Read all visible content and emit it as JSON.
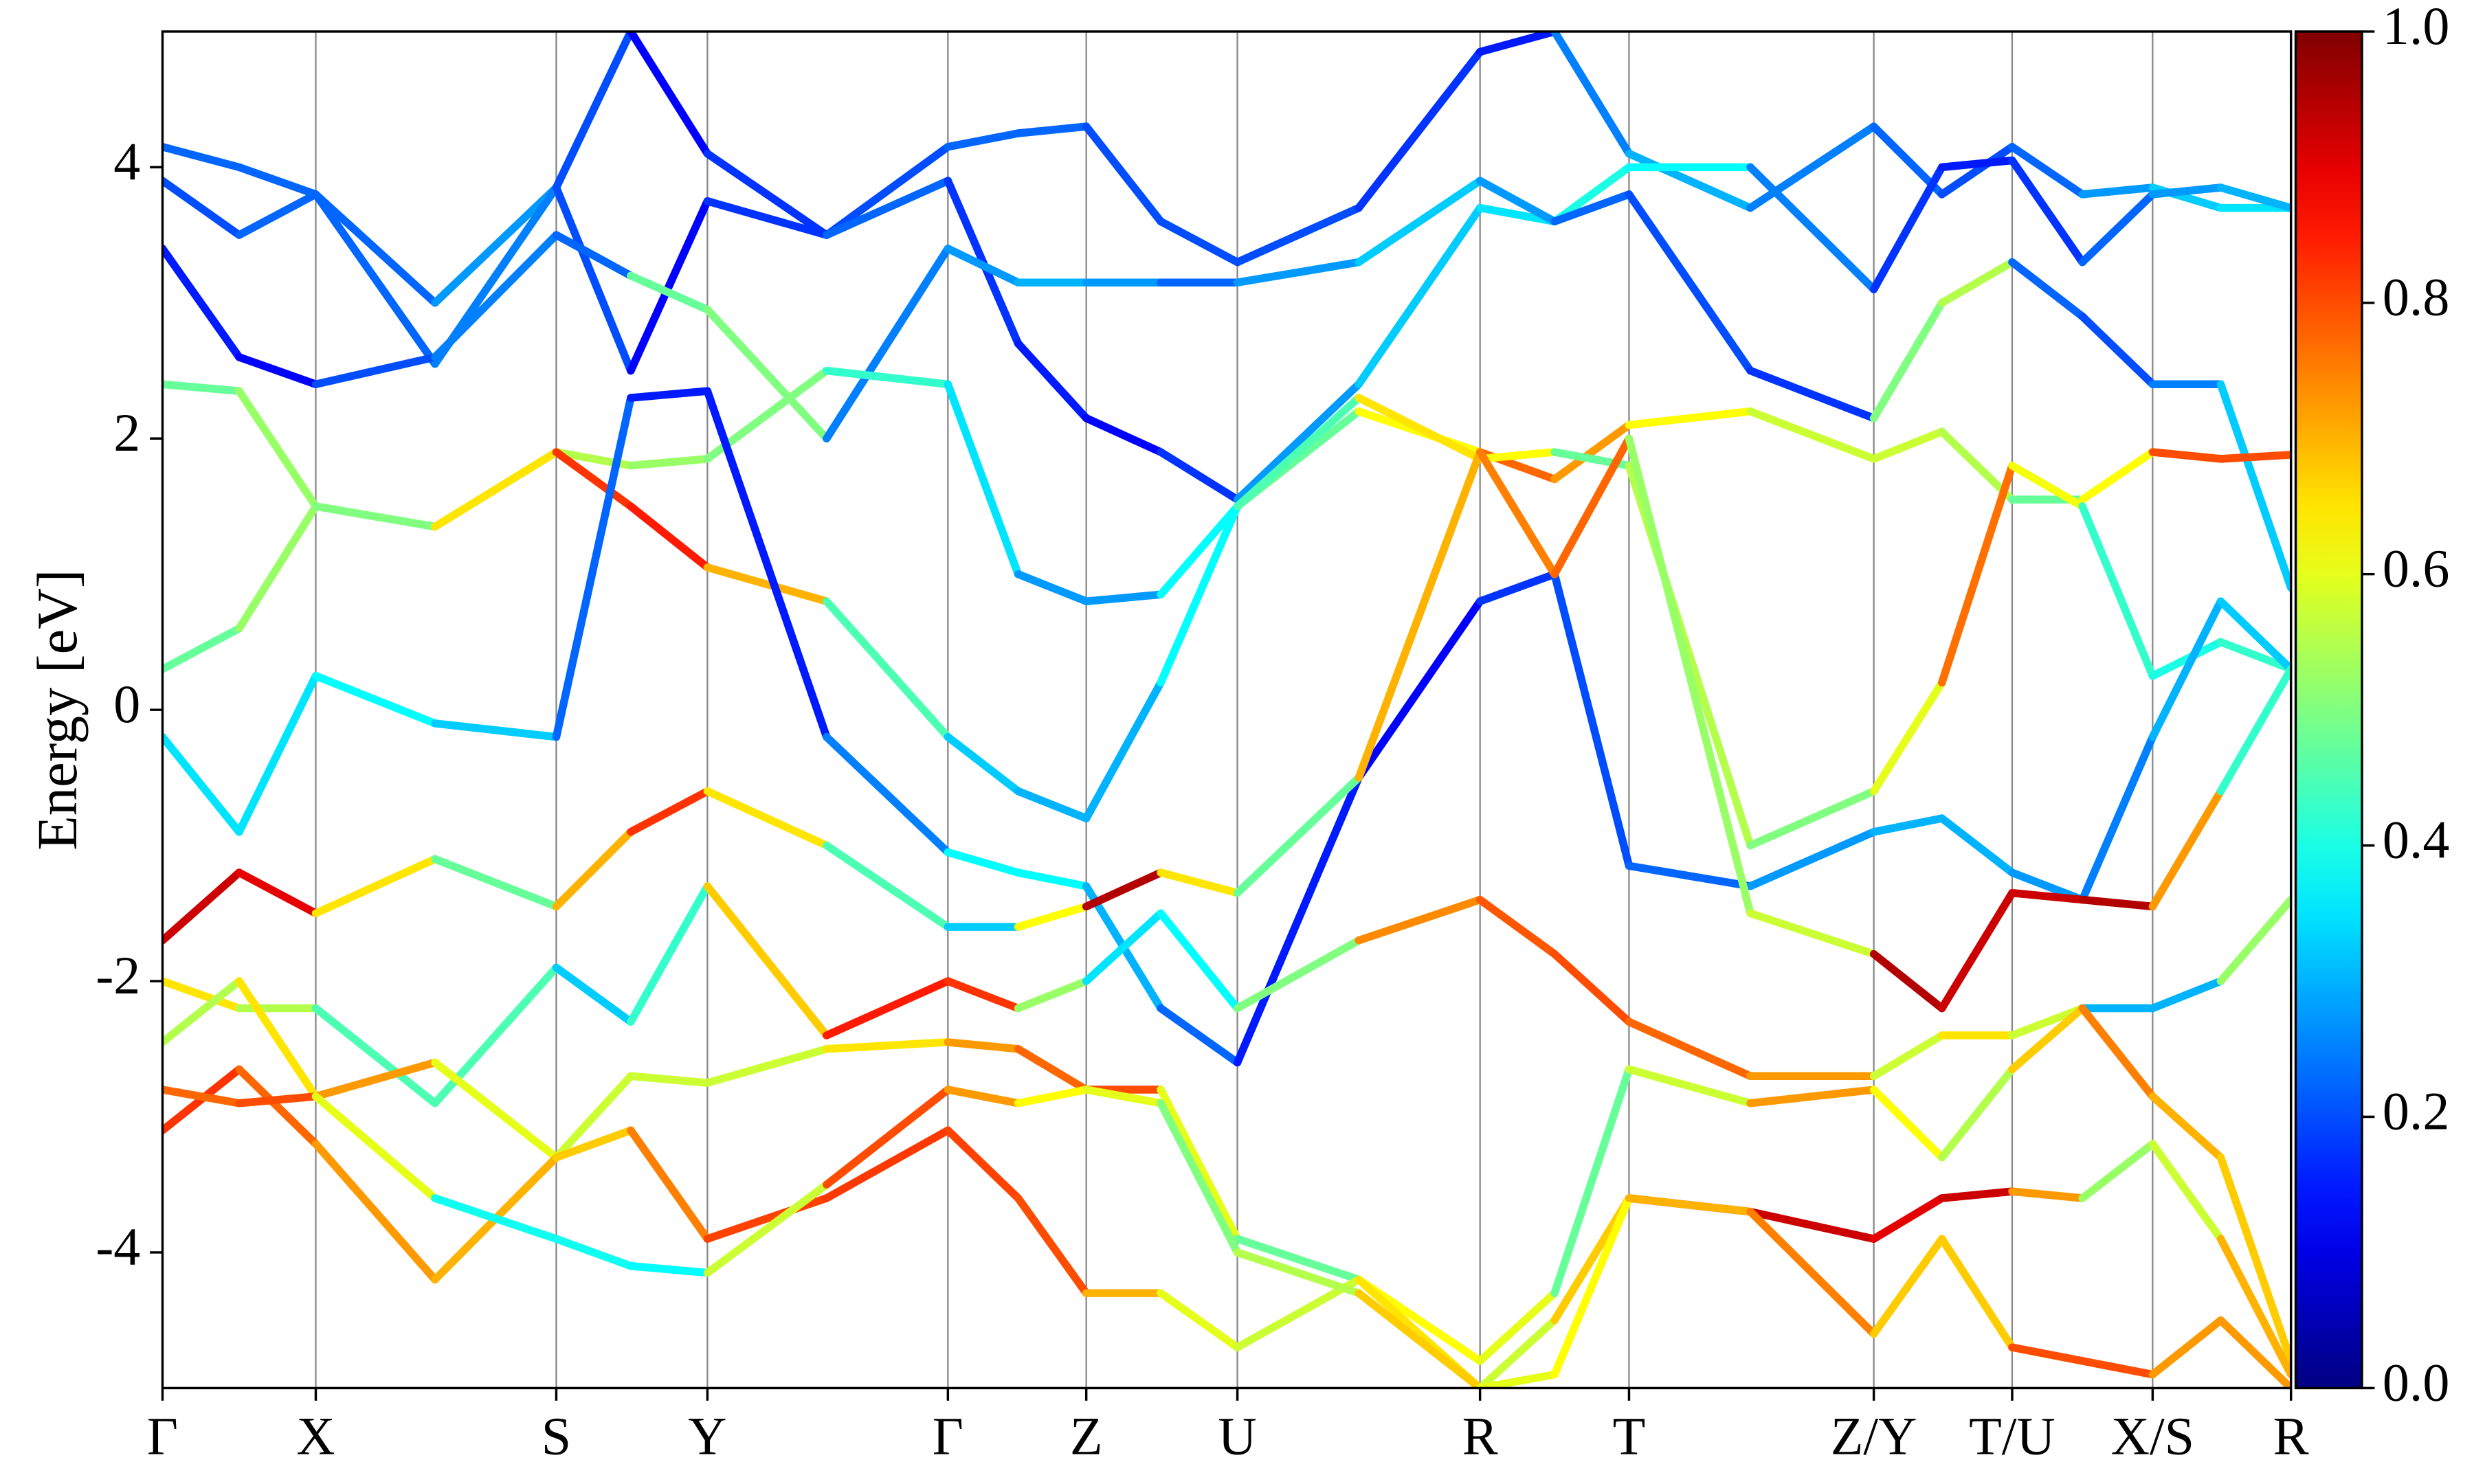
{
  "chart_data": {
    "type": "band-structure",
    "ylabel": "Energy [eV]",
    "ylim": [
      -5,
      5
    ],
    "yticks": [
      -4,
      -2,
      0,
      2,
      4
    ],
    "xlim": [
      0,
      1
    ],
    "xticks": [
      {
        "value": 0,
        "label": "Γ"
      },
      {
        "value": 0.072,
        "label": "X"
      },
      {
        "value": 0.185,
        "label": "S"
      },
      {
        "value": 0.256,
        "label": "Y"
      },
      {
        "value": 0.369,
        "label": "Γ"
      },
      {
        "value": 0.434,
        "label": "Z"
      },
      {
        "value": 0.505,
        "label": "U"
      },
      {
        "value": 0.619,
        "label": "R"
      },
      {
        "value": 0.689,
        "label": "T"
      },
      {
        "value": 0.804,
        "label": "Z/Y"
      },
      {
        "value": 0.869,
        "label": "T/U"
      },
      {
        "value": 0.935,
        "label": "X/S"
      },
      {
        "value": 1,
        "label": "R"
      }
    ],
    "grid": true,
    "colormap": "jet",
    "colorbar": {
      "lim": [
        0,
        1
      ],
      "ticks": [
        {
          "value": 0,
          "label": "0.0"
        },
        0.2,
        0.4,
        0.6,
        0.8,
        {
          "value": 1,
          "label": "1.0"
        }
      ]
    },
    "x": [
      0,
      0.036,
      0.072,
      0.128,
      0.185,
      0.22,
      0.256,
      0.312,
      0.369,
      0.402,
      0.434,
      0.469,
      0.505,
      0.562,
      0.619,
      0.654,
      0.689,
      0.746,
      0.804,
      0.836,
      0.869,
      0.902,
      0.935,
      0.967,
      1
    ],
    "series": [
      {
        "values": [
          4.15,
          4.0,
          3.8,
          3.0,
          3.85,
          5.0,
          4.1,
          3.5,
          4.15,
          4.25,
          4.3,
          3.6,
          3.3,
          3.7,
          4.85,
          5.0,
          4.1,
          3.7,
          4.3,
          3.8,
          4.15,
          3.8,
          3.85,
          3.7,
          3.7
        ],
        "weights": [
          0.2,
          0.25,
          0.2,
          0.25,
          0.3,
          0.1,
          0.15,
          0.2,
          0.2,
          0.25,
          0.2,
          0.2,
          0.2,
          0.2,
          0.15,
          0.15,
          0.35,
          0.25,
          0.25,
          0.2,
          0.2,
          0.25,
          0.3,
          0.35,
          0.35
        ]
      },
      {
        "values": [
          3.9,
          3.5,
          3.8,
          2.55,
          3.85,
          2.5,
          3.75,
          3.5,
          3.9,
          2.7,
          2.15,
          1.9,
          1.55,
          2.4,
          3.7,
          3.6,
          4.0,
          4.0,
          3.1,
          4.0,
          4.05,
          3.3,
          3.8,
          3.85,
          3.7
        ],
        "weights": [
          0.15,
          0.25,
          0.2,
          0.25,
          0.25,
          0.15,
          0.1,
          0.25,
          0.2,
          0.15,
          0.15,
          0.1,
          0.25,
          0.3,
          0.35,
          0.35,
          0.45,
          0.3,
          0.2,
          0.15,
          0.15,
          0.2,
          0.25,
          0.3,
          0.3
        ]
      },
      {
        "values": [
          3.4,
          2.6,
          2.4,
          2.6,
          3.5,
          3.2,
          2.95,
          2.0,
          3.4,
          3.15,
          3.15,
          3.15,
          3.15,
          3.3,
          3.9,
          3.6,
          3.8,
          2.5,
          2.15,
          3.0,
          3.3,
          2.9,
          2.4,
          2.4,
          0.9
        ],
        "weights": [
          0.2,
          0.1,
          0.15,
          0.25,
          0.25,
          0.2,
          0.75,
          0.25,
          0.25,
          0.3,
          0.3,
          0.25,
          0.2,
          0.35,
          0.3,
          0.25,
          0.2,
          0.2,
          0.15,
          0.85,
          0.25,
          0.2,
          0.2,
          0.3,
          0.35
        ]
      },
      {
        "values": [
          2.4,
          2.35,
          1.5,
          1.35,
          1.9,
          1.8,
          1.85,
          2.5,
          2.4,
          1.0,
          0.8,
          0.85,
          1.5,
          2.2,
          1.9,
          1.7,
          2.1,
          2.2,
          1.85,
          2.05,
          1.55,
          1.55,
          1.9,
          1.85,
          1.88
        ],
        "weights": [
          0.45,
          0.5,
          0.55,
          0.5,
          0.6,
          0.5,
          0.55,
          0.45,
          0.4,
          0.3,
          0.25,
          0.3,
          0.45,
          0.5,
          0.75,
          0.8,
          0.65,
          0.6,
          0.55,
          0.6,
          0.5,
          0.45,
          0.8,
          0.8,
          0.8
        ]
      },
      {
        "values": [
          0.3,
          0.6,
          1.5,
          1.35,
          1.9,
          1.5,
          1.05,
          0.8,
          -0.2,
          -0.6,
          -0.8,
          0.2,
          1.5,
          2.3,
          1.85,
          1.9,
          1.8,
          -1.0,
          -0.6,
          0.2,
          1.8,
          1.5,
          0.25,
          0.5,
          0.3
        ],
        "weights": [
          0.4,
          0.55,
          0.5,
          0.5,
          0.8,
          0.85,
          0.85,
          0.55,
          0.35,
          0.3,
          0.3,
          0.3,
          0.45,
          0.45,
          0.85,
          0.4,
          0.55,
          0.55,
          0.45,
          0.75,
          0.78,
          0.45,
          0.4,
          0.4,
          0.45
        ]
      },
      {
        "values": [
          -0.2,
          -0.9,
          0.25,
          -0.1,
          -0.2,
          2.3,
          2.35,
          -0.2,
          -1.05,
          -1.2,
          -1.3,
          -2.2,
          -2.6,
          -0.5,
          0.8,
          1.0,
          -1.15,
          -1.3,
          -0.9,
          -0.8,
          -1.2,
          -1.4,
          -0.2,
          0.8,
          0.3
        ],
        "weights": [
          0.4,
          0.3,
          0.4,
          0.35,
          0.3,
          0.15,
          0.15,
          0.15,
          0.35,
          0.4,
          0.35,
          0.25,
          0.2,
          0.1,
          0.15,
          0.2,
          0.2,
          0.25,
          0.3,
          0.3,
          0.3,
          0.25,
          0.25,
          0.35,
          0.3
        ]
      },
      {
        "values": [
          -1.7,
          -1.2,
          -1.5,
          -1.1,
          -1.45,
          -0.9,
          -0.6,
          -1.0,
          -1.6,
          -1.6,
          -1.45,
          -1.2,
          -1.35,
          -0.5,
          1.9,
          1.0,
          2.0,
          -1.5,
          -1.8,
          -2.2,
          -1.35,
          -1.4,
          -1.45,
          -0.6,
          0.3
        ],
        "weights": [
          0.9,
          0.95,
          0.85,
          0.45,
          0.5,
          0.9,
          0.75,
          0.55,
          0.35,
          0.3,
          0.95,
          0.95,
          0.35,
          0.6,
          0.8,
          0.7,
          0.85,
          0.2,
          0.95,
          0.95,
          0.9,
          0.95,
          0.95,
          0.5,
          0.35
        ]
      },
      {
        "values": [
          -2.0,
          -2.2,
          -2.2,
          -2.9,
          -1.9,
          -2.3,
          -1.3,
          -2.4,
          -2.0,
          -2.2,
          -2.0,
          -1.5,
          -2.2,
          -1.7,
          -1.4,
          -1.8,
          -2.3,
          -2.7,
          -2.7,
          -2.4,
          -2.4,
          -2.2,
          -2.2,
          -2.0,
          -1.4
        ],
        "weights": [
          0.5,
          0.8,
          0.3,
          0.6,
          0.3,
          0.35,
          0.5,
          0.85,
          0.85,
          0.8,
          0.25,
          0.45,
          0.3,
          0.7,
          0.78,
          0.8,
          0.8,
          0.75,
          0.7,
          0.45,
          0.85,
          0.3,
          0.3,
          0.3,
          0.75
        ]
      },
      {
        "values": [
          -2.45,
          -2.0,
          -2.85,
          -2.6,
          -3.3,
          -2.7,
          -2.75,
          -2.5,
          -2.45,
          -2.5,
          -2.8,
          -2.8,
          -3.9,
          -4.2,
          -4.8,
          -4.3,
          -2.65,
          -2.9,
          -2.8,
          -3.3,
          -2.65,
          -2.2,
          -2.85,
          -3.3,
          -4.8
        ],
        "weights": [
          0.6,
          0.5,
          0.8,
          0.65,
          0.55,
          0.6,
          0.55,
          0.6,
          0.7,
          0.75,
          0.8,
          0.8,
          0.4,
          0.55,
          0.7,
          0.5,
          0.45,
          0.7,
          0.75,
          0.5,
          0.6,
          0.75,
          0.75,
          0.65,
          0.7
        ]
      },
      {
        "values": [
          -3.1,
          -2.65,
          -3.2,
          -4.2,
          -3.3,
          -3.1,
          -3.9,
          -3.6,
          -3.1,
          -3.6,
          -4.3,
          -4.3,
          -4.7,
          -4.2,
          -5.0,
          -4.5,
          -3.6,
          -3.7,
          -3.9,
          -3.6,
          -3.55,
          -3.6,
          -3.2,
          -3.9,
          -4.9
        ],
        "weights": [
          0.8,
          0.85,
          0.7,
          0.75,
          0.65,
          0.7,
          0.8,
          0.82,
          0.82,
          0.8,
          0.8,
          0.6,
          0.6,
          0.55,
          0.75,
          0.4,
          0.95,
          0.95,
          0.9,
          0.9,
          0.95,
          0.5,
          0.55,
          0.6,
          0.8
        ]
      },
      {
        "values": [
          -2.8,
          -2.9,
          -2.85,
          -3.6,
          -3.9,
          -4.1,
          -4.15,
          -3.5,
          -2.8,
          -2.9,
          -2.8,
          -2.9,
          -4.0,
          -4.3,
          -5.0,
          -4.9,
          -3.6,
          -3.7,
          -4.6,
          -3.9,
          -4.7,
          -4.8,
          -4.9,
          -4.5,
          -5.0
        ],
        "weights": [
          0.75,
          0.8,
          0.8,
          0.4,
          0.38,
          0.4,
          0.35,
          0.8,
          0.8,
          0.65,
          0.6,
          0.6,
          0.4,
          0.7,
          0.65,
          0.55,
          0.7,
          0.7,
          0.8,
          0.55,
          0.8,
          0.8,
          0.8,
          0.65,
          0.8
        ]
      }
    ]
  }
}
